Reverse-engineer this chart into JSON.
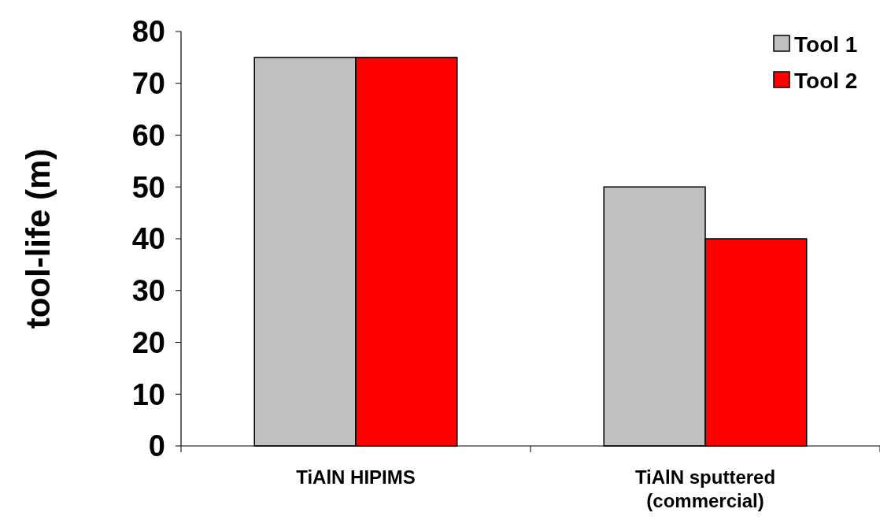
{
  "chart_data": {
    "type": "bar",
    "ylabel": "tool-life (m)",
    "categories": [
      "TiAlN HIPIMS",
      "TiAlN sputtered\n(commercial)"
    ],
    "series": [
      {
        "name": "Tool 1",
        "color": "#c0c0c0",
        "values": [
          75,
          50
        ]
      },
      {
        "name": "Tool 2",
        "color": "#ff0000",
        "values": [
          75,
          40
        ]
      }
    ],
    "ylim": [
      0,
      80
    ],
    "yticks": [
      0,
      10,
      20,
      30,
      40,
      50,
      60,
      70,
      80
    ],
    "legend": "top right",
    "grid": false
  }
}
